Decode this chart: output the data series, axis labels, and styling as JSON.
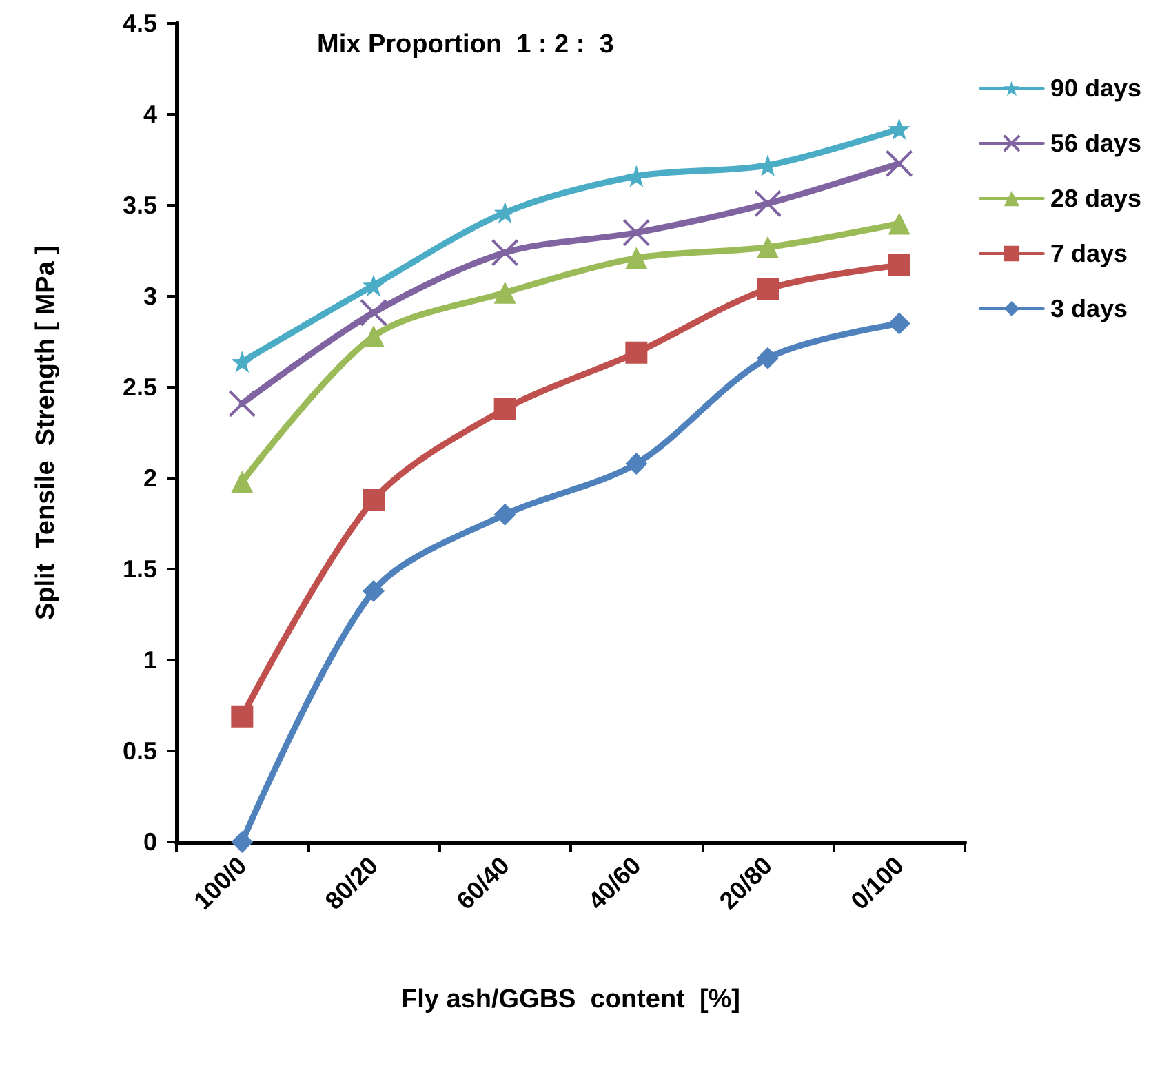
{
  "chart_data": {
    "type": "line",
    "title": "Mix Proportion  1 : 2 :  3",
    "xlabel": "Fly ash/GGBS  content  [%]",
    "ylabel": "Split  Tensile  Strength [ MPa ]",
    "categories": [
      "100/0",
      "80/20",
      "60/40",
      "40/60",
      "20/80",
      "0/100"
    ],
    "series": [
      {
        "name": "90 days",
        "color": "#4bacc6",
        "marker": "star",
        "values": [
          2.64,
          3.06,
          3.46,
          3.66,
          3.72,
          3.92
        ]
      },
      {
        "name": "56 days",
        "color": "#8064a2",
        "marker": "cross",
        "values": [
          2.41,
          2.91,
          3.24,
          3.35,
          3.51,
          3.73
        ]
      },
      {
        "name": "28 days",
        "color": "#9bbb59",
        "marker": "triangle",
        "values": [
          1.98,
          2.78,
          3.02,
          3.21,
          3.27,
          3.4
        ]
      },
      {
        "name": "7 days",
        "color": "#c0504d",
        "marker": "square",
        "values": [
          0.69,
          1.88,
          2.38,
          2.69,
          3.04,
          3.17
        ]
      },
      {
        "name": "3 days",
        "color": "#4f81bd",
        "marker": "diamond",
        "values": [
          0,
          1.38,
          1.8,
          2.08,
          2.66,
          2.85
        ]
      }
    ],
    "ylim": [
      0,
      4.5
    ],
    "yticks": [
      0,
      0.5,
      1,
      1.5,
      2,
      2.5,
      3,
      3.5,
      4,
      4.5
    ],
    "grid": false,
    "legend": "right"
  }
}
